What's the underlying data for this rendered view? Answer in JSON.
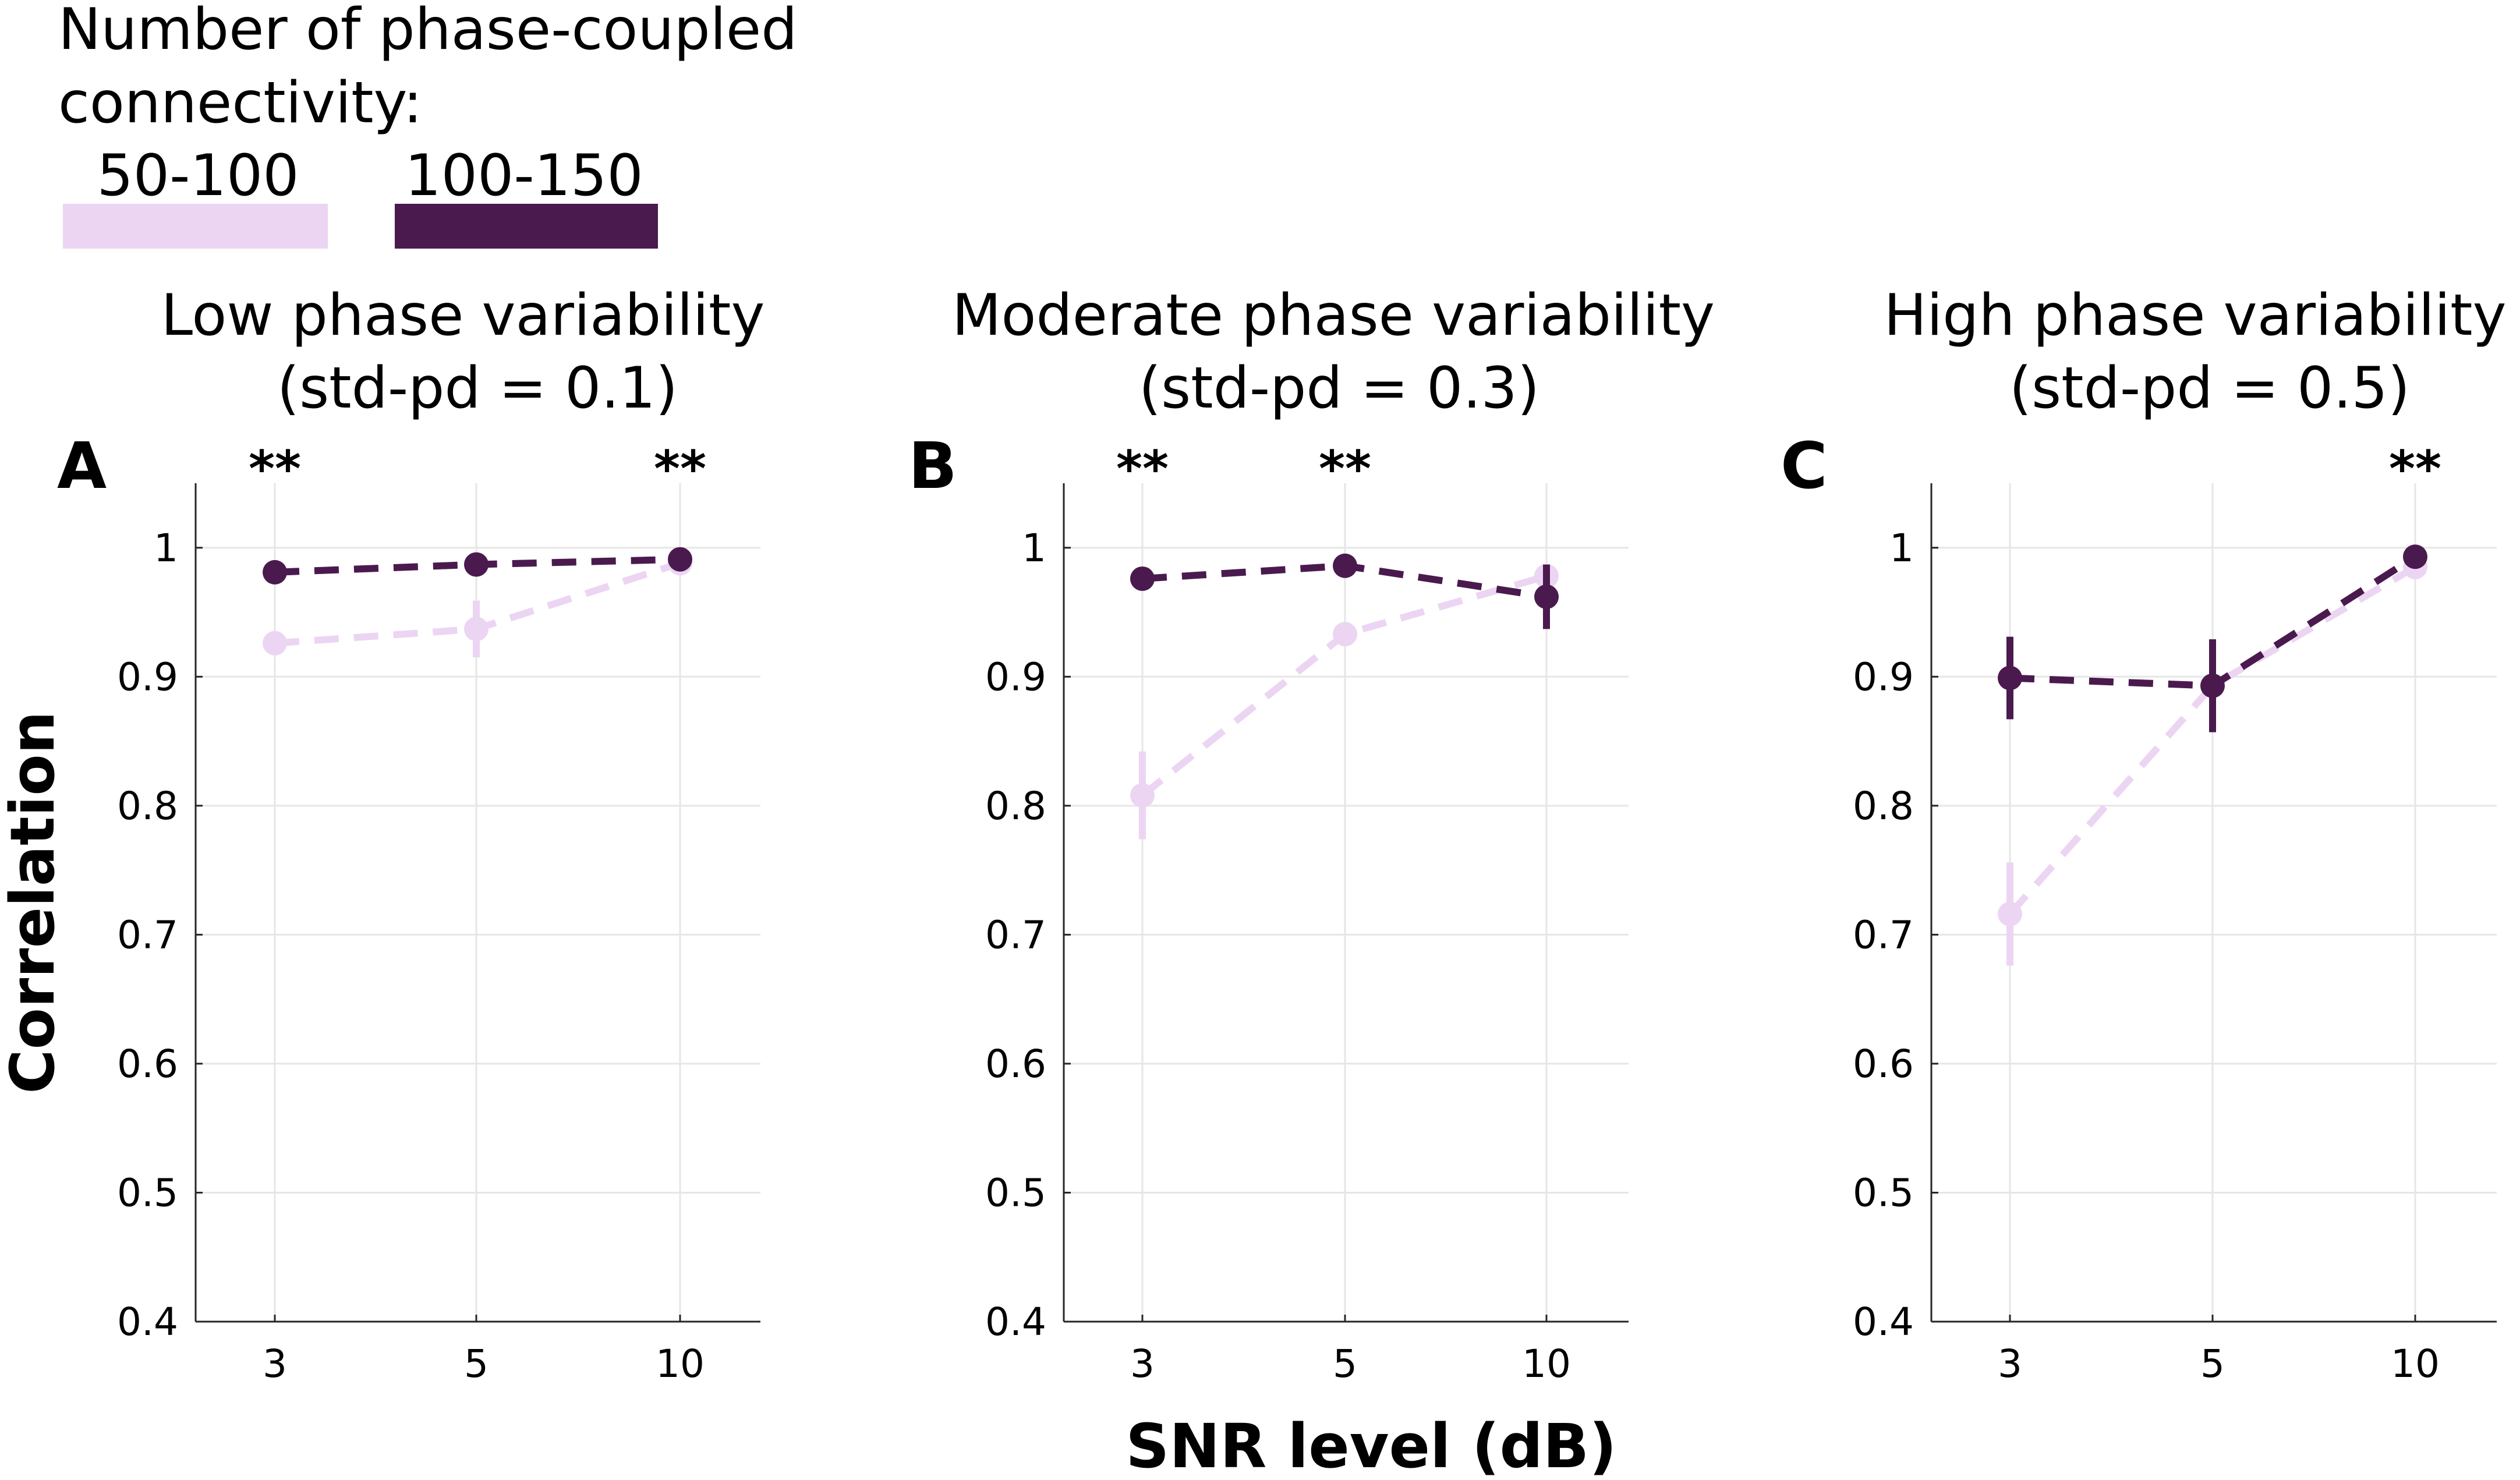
{
  "legend": {
    "title_line1": "Number of phase-coupled",
    "title_line2": "connectivity:",
    "items": [
      {
        "label": "50-100",
        "color": "#ecd5f2"
      },
      {
        "label": "100-150",
        "color": "#4a1a4e"
      }
    ]
  },
  "axes": {
    "ylabel": "Correlation",
    "xlabel": "SNR level (dB)"
  },
  "chart_data": [
    {
      "type": "line",
      "panel": "A",
      "title_line1": "Low phase variability",
      "title_line2": "(std-pd = 0.1)",
      "categories": [
        "3",
        "5",
        "10"
      ],
      "ylim": [
        0.4,
        1.05
      ],
      "yticks": [
        "0.4",
        "0.5",
        "0.6",
        "0.7",
        "0.8",
        "0.9",
        "1"
      ],
      "grid": true,
      "significance": [
        "**",
        "",
        "**"
      ],
      "series": [
        {
          "name": "50-100",
          "color": "#ecd5f2",
          "values": [
            0.926,
            0.937,
            0.988
          ],
          "errors": [
            0.008,
            0.022,
            0.004
          ]
        },
        {
          "name": "100-150",
          "color": "#4a1a4e",
          "values": [
            0.981,
            0.987,
            0.991
          ],
          "errors": [
            0.004,
            0.004,
            0.003
          ]
        }
      ]
    },
    {
      "type": "line",
      "panel": "B",
      "title_line1": "Moderate phase variability",
      "title_line2": "(std-pd = 0.3)",
      "categories": [
        "3",
        "5",
        "10"
      ],
      "ylim": [
        0.4,
        1.05
      ],
      "yticks": [
        "0.4",
        "0.5",
        "0.6",
        "0.7",
        "0.8",
        "0.9",
        "1"
      ],
      "grid": true,
      "significance": [
        "**",
        "**",
        ""
      ],
      "series": [
        {
          "name": "50-100",
          "color": "#ecd5f2",
          "values": [
            0.808,
            0.933,
            0.978
          ],
          "errors": [
            0.034,
            0.008,
            0.006
          ]
        },
        {
          "name": "100-150",
          "color": "#4a1a4e",
          "values": [
            0.976,
            0.986,
            0.962
          ],
          "errors": [
            0.004,
            0.004,
            0.025
          ]
        }
      ]
    },
    {
      "type": "line",
      "panel": "C",
      "title_line1": "High phase variability",
      "title_line2": "(std-pd = 0.5)",
      "categories": [
        "3",
        "5",
        "10"
      ],
      "ylim": [
        0.4,
        1.05
      ],
      "yticks": [
        "0.4",
        "0.5",
        "0.6",
        "0.7",
        "0.8",
        "0.9",
        "1"
      ],
      "grid": true,
      "significance": [
        "",
        "",
        "**"
      ],
      "series": [
        {
          "name": "50-100",
          "color": "#ecd5f2",
          "values": [
            0.716,
            0.893,
            0.985
          ],
          "errors": [
            0.04,
            0.03,
            0.004
          ]
        },
        {
          "name": "100-150",
          "color": "#4a1a4e",
          "values": [
            0.899,
            0.893,
            0.993
          ],
          "errors": [
            0.032,
            0.036,
            0.003
          ]
        }
      ]
    }
  ]
}
